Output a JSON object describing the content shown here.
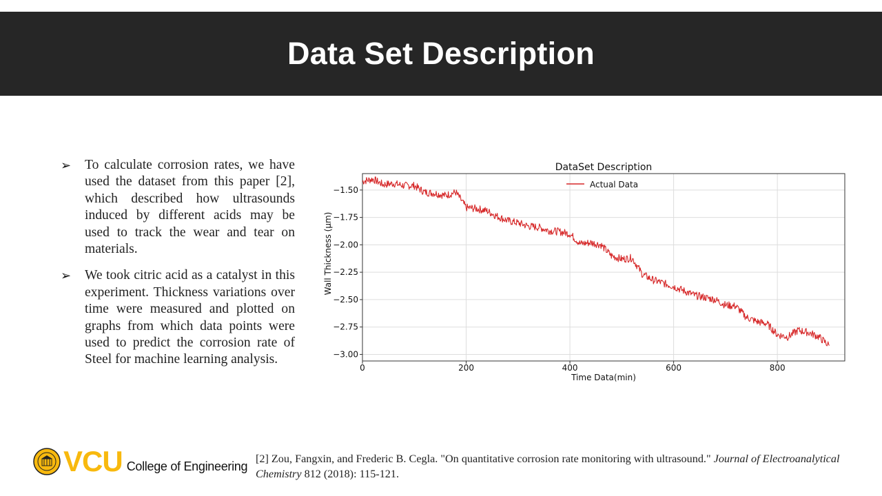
{
  "slide": {
    "title": "Data Set Description"
  },
  "bullets": [
    {
      "icon": "arrow-bullet-icon",
      "text": "To calculate corrosion rates, we have used the dataset from this paper [2], which described how ultrasounds induced by different acids may be used to track the wear and tear on materials."
    },
    {
      "icon": "arrow-bullet-icon",
      "text": "We took citric acid as a catalyst in this experiment. Thickness variations over time were measured and plotted on graphs from which data points were used to predict the corrosion rate of Steel for machine learning analysis."
    }
  ],
  "chart_data": {
    "type": "line",
    "title": "DataSet Description",
    "xlabel": "Time Data(min)",
    "ylabel": "Wall Thickness (μm)",
    "xlim": [
      0,
      930
    ],
    "ylim": [
      -3.06,
      -1.35
    ],
    "xticks": [
      0,
      200,
      400,
      600,
      800
    ],
    "yticks": [
      -1.5,
      -1.75,
      -2.0,
      -2.25,
      -2.5,
      -2.75,
      -3.0
    ],
    "grid": true,
    "legend": "top-center",
    "series": [
      {
        "name": "Actual Data",
        "color": "#d62728",
        "x": [
          0,
          20,
          40,
          60,
          80,
          100,
          120,
          140,
          160,
          180,
          200,
          220,
          240,
          260,
          280,
          300,
          320,
          340,
          360,
          380,
          400,
          420,
          440,
          460,
          480,
          500,
          520,
          540,
          560,
          580,
          600,
          620,
          640,
          660,
          680,
          700,
          720,
          740,
          760,
          780,
          800,
          820,
          840,
          860,
          880,
          900
        ],
        "y": [
          -1.42,
          -1.4,
          -1.45,
          -1.44,
          -1.46,
          -1.46,
          -1.52,
          -1.53,
          -1.55,
          -1.52,
          -1.66,
          -1.67,
          -1.69,
          -1.74,
          -1.78,
          -1.8,
          -1.83,
          -1.84,
          -1.87,
          -1.88,
          -1.9,
          -1.99,
          -1.98,
          -2.0,
          -2.1,
          -2.13,
          -2.12,
          -2.27,
          -2.32,
          -2.35,
          -2.38,
          -2.42,
          -2.46,
          -2.48,
          -2.5,
          -2.55,
          -2.56,
          -2.66,
          -2.7,
          -2.72,
          -2.82,
          -2.84,
          -2.78,
          -2.8,
          -2.84,
          -2.92
        ]
      }
    ]
  },
  "footer": {
    "logo_text": "VCU",
    "college": "College of Engineering",
    "citation_prefix": "[2] Zou, Fangxin, and Frederic B. Cegla. \"On quantitative corrosion rate monitoring with ultrasound.\" ",
    "citation_journal": "Journal of Electroanalytical Chemistry",
    "citation_suffix": " 812 (2018): 115-121."
  },
  "colors": {
    "title_bar": "#262626",
    "vcu_gold": "#f8b90e",
    "series": "#d62728"
  }
}
